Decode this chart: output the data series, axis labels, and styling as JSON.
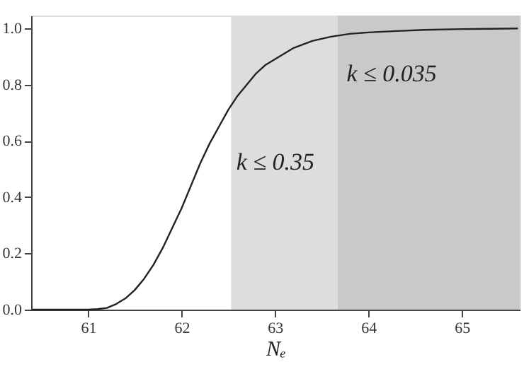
{
  "chart_data": {
    "type": "line",
    "xlabel": "Nₑ",
    "x": [
      60.4,
      60.8,
      61.0,
      61.1,
      61.2,
      61.3,
      61.4,
      61.5,
      61.6,
      61.7,
      61.8,
      61.9,
      62.0,
      62.1,
      62.2,
      62.3,
      62.4,
      62.5,
      62.6,
      62.7,
      62.8,
      62.9,
      63.0,
      63.2,
      63.4,
      63.6,
      63.8,
      64.0,
      64.3,
      64.6,
      65.0,
      65.3,
      65.6
    ],
    "series": [
      {
        "color": "#222222",
        "values": [
          0,
          0,
          0,
          0.002,
          0.006,
          0.02,
          0.04,
          0.07,
          0.11,
          0.16,
          0.22,
          0.29,
          0.36,
          0.44,
          0.52,
          0.59,
          0.65,
          0.71,
          0.76,
          0.8,
          0.84,
          0.87,
          0.89,
          0.93,
          0.955,
          0.97,
          0.98,
          0.985,
          0.99,
          0.994,
          0.997,
          0.998,
          0.999
        ]
      }
    ],
    "xlim": [
      60.39,
      65.62
    ],
    "xticks": [
      61,
      62,
      63,
      64,
      65
    ],
    "ylim": [
      0,
      1.045
    ],
    "yticks": [
      {
        "value": 0,
        "label": "0.0"
      },
      0.2,
      0.4,
      0.6,
      0.8,
      {
        "value": 1,
        "label": "1.0"
      }
    ],
    "bands": [
      {
        "axis": "x",
        "from": 62.53,
        "to": 63.67,
        "label": "k ≤ 0.35",
        "color": "#dcdddf"
      },
      {
        "axis": "x",
        "from": 63.67,
        "to": 65.62,
        "label": "k ≤ 0.035",
        "color": "#c8c9cb"
      }
    ],
    "grid": false,
    "marker": "none",
    "line_style": "solid"
  }
}
